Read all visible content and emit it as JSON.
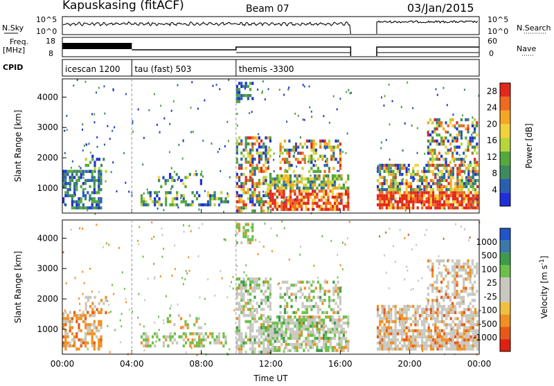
{
  "header": {
    "station": "Kapuskasing (fitACF)",
    "beam": "Beam 07",
    "date": "03/Jan/2015"
  },
  "panels": {
    "nsky_label": "N.Sky",
    "nsearch_label": "N.Search",
    "freq_label_line1": "Freq.",
    "freq_label_line2": "[MHz]",
    "nave_label": "Nave",
    "cpid_label": "CPID",
    "nsky_ticks": [
      "10^5",
      "10^0"
    ],
    "nsearch_ticks": [
      "10^5",
      "10^0"
    ],
    "freq_ticks": [
      "18",
      "8"
    ],
    "nave_ticks": [
      "60",
      "0"
    ],
    "cpid_entries": [
      {
        "label": "icescan 1200",
        "start_hour": 0
      },
      {
        "label": "tau (fast) 503",
        "start_hour": 4
      },
      {
        "label": "themis -3300",
        "start_hour": 10
      }
    ]
  },
  "colors": {
    "power_scale": [
      "#1f2fd8",
      "#2a5fb0",
      "#3f8a5c",
      "#54a83c",
      "#b7d53a",
      "#f2d23a",
      "#f5a623",
      "#ef6a1f",
      "#e3281a"
    ],
    "velocity_scale": [
      "#2255c8",
      "#3a7aa8",
      "#3f9a4a",
      "#6cc04a",
      "#c8c8c0",
      "#c8c8c0",
      "#f0c040",
      "#f09020",
      "#e85818",
      "#e02010"
    ],
    "data_gap": "#ffffff"
  },
  "chart_data": [
    {
      "type": "heatmap",
      "title": "Power",
      "xlabel": "Time UT",
      "ylabel": "Slant Range [km]",
      "xlim_hours": [
        0,
        24
      ],
      "ylim": [
        180,
        4600
      ],
      "x_ticks": [
        "00:00",
        "04:00",
        "08:00",
        "12:00",
        "16:00",
        "20:00",
        "00:00"
      ],
      "y_ticks": [
        1000,
        2000,
        3000,
        4000
      ],
      "colorbar_label": "Power [dB]",
      "colorbar_ticks": [
        4,
        8,
        12,
        16,
        20,
        24,
        28
      ],
      "colorbar_range": [
        0,
        30
      ],
      "data_gaps_hours": [
        [
          16.6,
          18.1
        ]
      ]
    },
    {
      "type": "heatmap",
      "title": "Velocity",
      "xlabel": "Time UT",
      "ylabel": "Slant Range [km]",
      "xlim_hours": [
        0,
        24
      ],
      "ylim": [
        180,
        4600
      ],
      "x_ticks": [
        "00:00",
        "04:00",
        "08:00",
        "12:00",
        "16:00",
        "20:00",
        "00:00"
      ],
      "y_ticks": [
        1000,
        2000,
        3000,
        4000
      ],
      "colorbar_label": "Velocity [m s^-1]",
      "colorbar_ticks": [
        "1000",
        "500",
        "100",
        "25",
        "-25",
        "-100",
        "-500",
        "-1000"
      ],
      "data_gaps_hours": [
        [
          16.6,
          18.1
        ]
      ]
    }
  ]
}
